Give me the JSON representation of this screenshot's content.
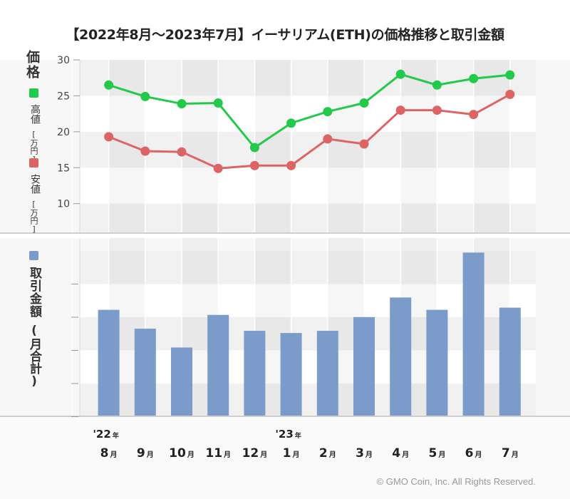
{
  "title": "【2022年8月〜2023年7月】イーサリアム(ETH)の価格推移と取引金額",
  "copyright": "© GMO Coin, Inc. All Rights Reserved.",
  "colors": {
    "high": "#22c94a",
    "low": "#dd6464",
    "volume": "#7b9ccb",
    "band_light": "#f1f1f1",
    "band_white": "#ffffff",
    "background": "#f7f7f7"
  },
  "price_panel": {
    "ylabel": "価格",
    "legend_high": "高値",
    "legend_low": "安値",
    "unit": "[万円]"
  },
  "volume_panel": {
    "ylabel": "取引金額",
    "unit": "(月合計)"
  },
  "chart_data": [
    {
      "type": "line",
      "categories": [
        "'22年8月",
        "9月",
        "10月",
        "11月",
        "12月",
        "'23年1月",
        "2月",
        "3月",
        "4月",
        "5月",
        "6月",
        "7月"
      ],
      "ylim": [
        6,
        30
      ],
      "yticks": [
        10,
        15,
        20,
        25,
        30
      ],
      "ylabel": "価格",
      "grid": true,
      "series": [
        {
          "name": "高値",
          "values": [
            26.5,
            24.9,
            23.9,
            24.0,
            17.8,
            21.2,
            22.8,
            24.0,
            28.0,
            26.5,
            27.4,
            27.9
          ]
        },
        {
          "name": "安値",
          "values": [
            19.3,
            17.3,
            17.2,
            14.9,
            15.3,
            15.3,
            19.0,
            18.3,
            23.0,
            23.0,
            22.4,
            25.2
          ]
        }
      ]
    },
    {
      "type": "bar",
      "categories": [
        "'22年8月",
        "9月",
        "10月",
        "11月",
        "12月",
        "'23年1月",
        "2月",
        "3月",
        "4月",
        "5月",
        "6月",
        "7月"
      ],
      "values": [
        146,
        120,
        94,
        139,
        117,
        114,
        117,
        136,
        163,
        146,
        225,
        149
      ],
      "ylim": [
        0,
        245
      ],
      "ylabel": "取引金額"
    }
  ],
  "axis": {
    "months": [
      {
        "month": "8",
        "unit": "月",
        "year": "'22",
        "year_unit": "年"
      },
      {
        "month": "9",
        "unit": "月"
      },
      {
        "month": "10",
        "unit": "月"
      },
      {
        "month": "11",
        "unit": "月"
      },
      {
        "month": "12",
        "unit": "月"
      },
      {
        "month": "1",
        "unit": "月",
        "year": "'23",
        "year_unit": "年"
      },
      {
        "month": "2",
        "unit": "月"
      },
      {
        "month": "3",
        "unit": "月"
      },
      {
        "month": "4",
        "unit": "月"
      },
      {
        "month": "5",
        "unit": "月"
      },
      {
        "month": "6",
        "unit": "月"
      },
      {
        "month": "7",
        "unit": "月"
      }
    ]
  }
}
